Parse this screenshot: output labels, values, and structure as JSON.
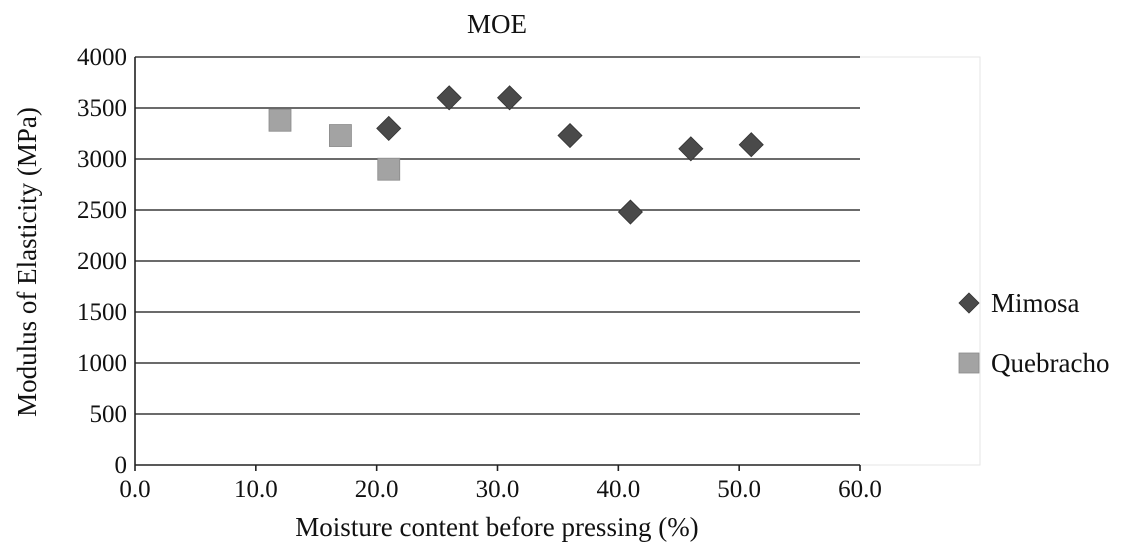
{
  "chart_data": {
    "type": "scatter",
    "title": "MOE",
    "xlabel": "Moisture content before pressing (%)",
    "ylabel": "Modulus of Elasticity (MPa)",
    "xlim": [
      0,
      60
    ],
    "ylim": [
      0,
      4000
    ],
    "x_ticks": [
      "0.0",
      "10.0",
      "20.0",
      "30.0",
      "40.0",
      "50.0",
      "60.0"
    ],
    "y_ticks": [
      "0",
      "500",
      "1000",
      "1500",
      "2000",
      "2500",
      "3000",
      "3500",
      "4000"
    ],
    "grid": "horizontal",
    "legend_position": "right",
    "series": [
      {
        "name": "Mimosa",
        "marker": "diamond",
        "color": "#4a4a4a",
        "points": [
          {
            "x": 21,
            "y": 3300
          },
          {
            "x": 26,
            "y": 3600
          },
          {
            "x": 31,
            "y": 3600
          },
          {
            "x": 36,
            "y": 3230
          },
          {
            "x": 41,
            "y": 2480
          },
          {
            "x": 46,
            "y": 3100
          },
          {
            "x": 51,
            "y": 3140
          }
        ]
      },
      {
        "name": "Quebracho",
        "marker": "square",
        "color": "#a3a3a3",
        "points": [
          {
            "x": 12,
            "y": 3380
          },
          {
            "x": 17,
            "y": 3230
          },
          {
            "x": 21,
            "y": 2900
          }
        ]
      }
    ]
  }
}
